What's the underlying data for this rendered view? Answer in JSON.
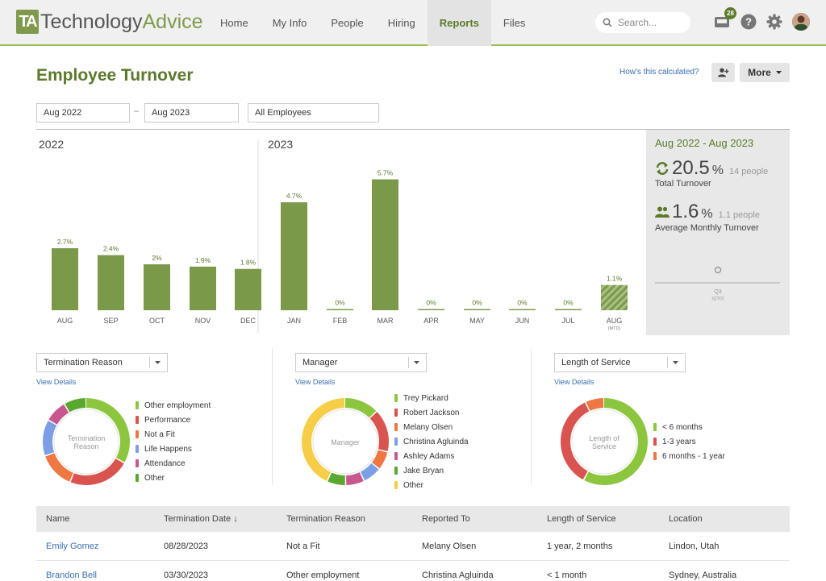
{
  "header": {
    "logo_mark": "TA",
    "logo_text_a": "Technology",
    "logo_text_b": "Advice",
    "nav": [
      "Home",
      "My Info",
      "People",
      "Hiring",
      "Reports",
      "Files"
    ],
    "active_nav": "Reports",
    "search_placeholder": "Search...",
    "notification_count": "28",
    "brand_color": "#7f9a4d"
  },
  "page": {
    "title": "Employee Turnover",
    "how_link": "How's this calculated?",
    "more_label": "More"
  },
  "filters": {
    "from": "Aug 2022",
    "to": "Aug 2023",
    "dash": "–",
    "scope": "All Employees"
  },
  "chart_data": {
    "type": "bar",
    "groups": [
      {
        "label": "2022",
        "count": 5
      },
      {
        "label": "2023",
        "count": 8
      }
    ],
    "categories": [
      "AUG",
      "SEP",
      "OCT",
      "NOV",
      "DEC",
      "JAN",
      "FEB",
      "MAR",
      "APR",
      "MAY",
      "JUN",
      "JUL",
      "AUG"
    ],
    "sublabels": [
      "",
      "",
      "",
      "",
      "",
      "",
      "",
      "",
      "",
      "",
      "",
      "",
      "(MTD)"
    ],
    "values": [
      2.7,
      2.4,
      2.0,
      1.9,
      1.8,
      4.7,
      0,
      5.7,
      0,
      0,
      0,
      0,
      1.1
    ],
    "value_labels": [
      "2.7%",
      "2.4%",
      "2%",
      "1.9%",
      "1.8%",
      "4.7%",
      "0%",
      "5.7%",
      "0%",
      "0%",
      "0%",
      "0%",
      "1.1%"
    ],
    "hatched_last": true,
    "color": "#7a9a4a",
    "ylim": [
      0,
      6
    ]
  },
  "summary": {
    "title": "Aug 2022 - Aug 2023",
    "total_value": "20.5",
    "total_unit": "%",
    "total_people": "14 people",
    "total_label": "Total Turnover",
    "avg_value": "1.6",
    "avg_unit": "%",
    "avg_people": "1.1 people",
    "avg_label": "Average Monthly Turnover",
    "quarter_label": "Q3",
    "quarter_sub": "(QTD)"
  },
  "donuts": [
    {
      "select": "Termination Reason",
      "view": "View Details",
      "center": [
        "Termination",
        "Reason"
      ],
      "items": [
        {
          "label": "Other employment",
          "color": "#8cc63f",
          "value": 32
        },
        {
          "label": "Performance",
          "color": "#d9534f",
          "value": 22
        },
        {
          "label": "Not a Fit",
          "color": "#ee7743",
          "value": 13
        },
        {
          "label": "Life Happens",
          "color": "#7b9ee6",
          "value": 13
        },
        {
          "label": "Attendance",
          "color": "#c9578f",
          "value": 8
        },
        {
          "label": "Other",
          "color": "#5aa832",
          "value": 8
        }
      ]
    },
    {
      "select": "Manager",
      "view": "View Details",
      "center": [
        "Manager"
      ],
      "items": [
        {
          "label": "Trey Pickard",
          "color": "#8cc63f",
          "value": 13
        },
        {
          "label": "Robert Jackson",
          "color": "#d9534f",
          "value": 16
        },
        {
          "label": "Melany Olsen",
          "color": "#ee7743",
          "value": 7
        },
        {
          "label": "Christina Agluinda",
          "color": "#7b9ee6",
          "value": 7
        },
        {
          "label": "Ashley Adams",
          "color": "#c9578f",
          "value": 7
        },
        {
          "label": "Jake Bryan",
          "color": "#5aa832",
          "value": 7
        },
        {
          "label": "Other",
          "color": "#f5cd47",
          "value": 43
        }
      ]
    },
    {
      "select": "Length of Service",
      "view": "View Details",
      "center": [
        "Length of",
        "Service"
      ],
      "items": [
        {
          "label": "< 6 months",
          "color": "#8cc63f",
          "value": 58
        },
        {
          "label": "1-3 years",
          "color": "#d9534f",
          "value": 35
        },
        {
          "label": "6 months - 1 year",
          "color": "#ee7743",
          "value": 7
        }
      ]
    }
  ],
  "table": {
    "headers": [
      "Name",
      "Termination Date ↓",
      "Termination Reason",
      "Reported To",
      "Length of Service",
      "Location"
    ],
    "rows": [
      [
        "Emily Gomez",
        "08/28/2023",
        "Not a Fit",
        "Melany Olsen",
        "1 year, 2 months",
        "Lindon, Utah"
      ],
      [
        "Brandon Bell",
        "03/30/2023",
        "Other employment",
        "Christina Agluinda",
        "< 1 month",
        "Sydney, Australia"
      ]
    ]
  }
}
